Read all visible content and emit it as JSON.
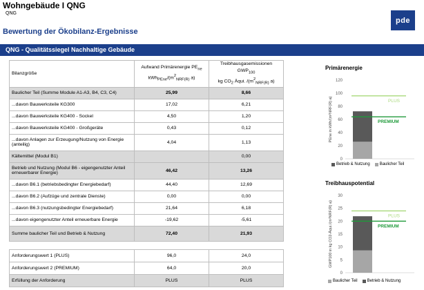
{
  "header": {
    "title": "Wohngebäude I QNG",
    "subtitle": "QNG",
    "logo_text": "pde"
  },
  "section_title": "Bewertung der Ökobilanz-Ergebnisse",
  "banner": "QNG - Qualitätssiegel Nachhaltige Gebäude",
  "table": {
    "col1": "Bilanzgröße",
    "col2_line1": "Aufwand Primärenergie PE",
    "col2_sub1": "ne",
    "col2_line2a": "kWh",
    "col2_sub2": "PEne",
    "col2_line2b": "/(m",
    "col2_sup": "2",
    "col2_sub3": "NRF(R)",
    "col2_line2c": " a)",
    "col3_line1": "Treibhausgasemissionen GWP",
    "col3_sub1": "100",
    "col3_line2a": "kg CO",
    "col3_sub2": "2",
    "col3_line2b": " Äqui. /(m",
    "col3_sup": "2",
    "col3_sub3": "NRF(R)",
    "col3_line2c": " a)",
    "rows": [
      {
        "label": "Baulicher Teil (Summe Module A1-A3, B4, C3, C4)",
        "pe": "25,99",
        "gwp": "8,66",
        "style": "grey bold"
      },
      {
        "label": "...davon Bauwerksteile KG300",
        "pe": "17,02",
        "gwp": "6,21",
        "style": ""
      },
      {
        "label": "...davon Bauwerksteile KG400 - Sockel",
        "pe": "4,50",
        "gwp": "1,20",
        "style": ""
      },
      {
        "label": "...davon Bauwerksteile KG400 - Großgeräte",
        "pe": "0,43",
        "gwp": "0,12",
        "style": ""
      },
      {
        "label": "...davon Anlagen zur Erzeugung/Nutzung von Energie (anteilig)",
        "pe": "4,04",
        "gwp": "1,13",
        "style": "tall"
      },
      {
        "label": "Kältemittel (Modul B1)",
        "pe": "",
        "gwp": "0,00",
        "style": "grey"
      },
      {
        "label": "Betrieb und Nutzung (Modul B6 - eigengenutzter Anteil erneuerbarer Energie)",
        "pe": "46,42",
        "gwp": "13,26",
        "style": "grey bold tall"
      },
      {
        "label": "...davon B6.1 (betriebsbedingter Energiebedarf)",
        "pe": "44,40",
        "gwp": "12,69",
        "style": ""
      },
      {
        "label": "...davon B6.2 (Aufzüge und zentrale Dienste)",
        "pe": "0,00",
        "gwp": "0,00",
        "style": ""
      },
      {
        "label": "...davon B6.3 (nutzungsbedingter Energiebedarf)",
        "pe": "21,64",
        "gwp": "6,18",
        "style": ""
      },
      {
        "label": "...davon eigengenutzter Anteil erneuerbare Energie",
        "pe": "-19,62",
        "gwp": "-5,61",
        "style": ""
      },
      {
        "label": "Summe baulicher Teil und Betrieb & Nutzung",
        "pe": "72,40",
        "gwp": "21,93",
        "style": "grey bold sum"
      }
    ]
  },
  "requirements": {
    "rows": [
      {
        "label": "Anforderungswert 1 (PLUS)",
        "pe": "96,0",
        "gwp": "24,0",
        "style": ""
      },
      {
        "label": "Anforderungswert 2 (PREMIUM)",
        "pe": "64,0",
        "gwp": "20,0",
        "style": ""
      },
      {
        "label": "Erfüllung der Anforderung",
        "pe": "PLUS",
        "gwp": "PLUS",
        "style": "grey"
      }
    ]
  },
  "colors": {
    "brand_blue": "#1b3f8b",
    "plus_line": "#a8d87a",
    "premium_line": "#1f9a3a",
    "bar_dark": "#595959",
    "bar_light": "#a6a6a6"
  },
  "chart_data": [
    {
      "type": "bar",
      "stacked": true,
      "title": "Primärenergie",
      "ylabel": "PEne in kWh/(m²NRF(R) a)",
      "ylim": [
        0,
        120
      ],
      "yticks": [
        0,
        20,
        40,
        60,
        80,
        100,
        120
      ],
      "series": [
        {
          "name": "Baulicher Teil",
          "values": [
            25.99
          ],
          "color": "#a6a6a6"
        },
        {
          "name": "Betrieb & Nutzung",
          "values": [
            46.42
          ],
          "color": "#595959"
        }
      ],
      "legend_order": [
        "Betrieb & Nutzung",
        "Baulicher Teil"
      ],
      "thresholds": [
        {
          "label": "PLUS",
          "value": 96,
          "color": "#a8d87a"
        },
        {
          "label": "PREMIUM",
          "value": 64,
          "color": "#1f9a3a"
        }
      ]
    },
    {
      "type": "bar",
      "stacked": true,
      "title": "Treibhauspotential",
      "ylabel": "GWP100 in kg CO2-Äqui./(m²NRF(R) a)",
      "ylim": [
        0,
        30
      ],
      "yticks": [
        0,
        5,
        10,
        15,
        20,
        25,
        30
      ],
      "series": [
        {
          "name": "Baulicher Teil",
          "values": [
            8.66
          ],
          "color": "#a6a6a6"
        },
        {
          "name": "Betrieb & Nutzung",
          "values": [
            13.26
          ],
          "color": "#595959"
        }
      ],
      "legend_order": [
        "Baulicher Teil",
        "Betrieb & Nutzung"
      ],
      "thresholds": [
        {
          "label": "PLUS",
          "value": 24,
          "color": "#a8d87a"
        },
        {
          "label": "PREMIUM",
          "value": 20,
          "color": "#1f9a3a"
        }
      ]
    }
  ]
}
